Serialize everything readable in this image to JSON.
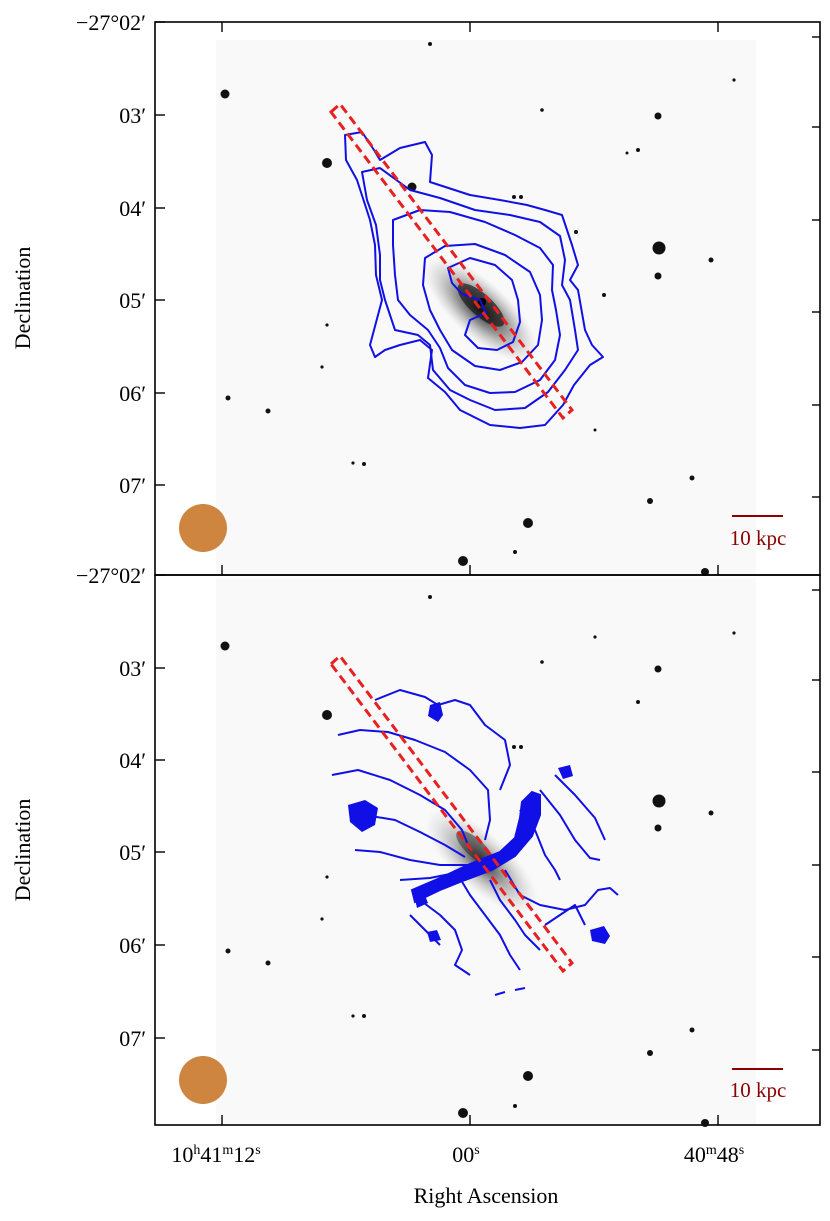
{
  "figure": {
    "xlabel": "Right Ascension",
    "ylabel": "Declination"
  },
  "colors": {
    "contour": "#1010e6",
    "slit": "#e82020",
    "beam": "#cd853f",
    "scalebar": "#8b0000",
    "star": "#111111",
    "galaxy": "#333333"
  },
  "chart_data": [
    {
      "type": "image",
      "panel": "top",
      "contours": "HI column density (blue)",
      "x_ticks": [
        "10h41m12s",
        "00s",
        "40m48s"
      ],
      "x_tick_parts": [
        {
          "a": "10",
          "s1": "h",
          "b": "41",
          "s2": "m",
          "c": "12",
          "s3": "s"
        },
        {
          "a": "00",
          "s1": "s",
          "b": "",
          "s2": "",
          "c": "",
          "s3": ""
        },
        {
          "a": "40",
          "s1": "m",
          "b": "48",
          "s2": "s",
          "c": "",
          "s3": ""
        }
      ],
      "x_tick_labels_shown": false,
      "y_ticks": [
        "−27°02′",
        "03′",
        "04′",
        "05′",
        "06′",
        "07′"
      ],
      "scalebar": "10 kpc",
      "beam": "circle"
    },
    {
      "type": "image",
      "panel": "bottom",
      "contours": "velocity field (blue)",
      "x_ticks": [
        "10h41m12s",
        "00s",
        "40m48s"
      ],
      "x_tick_parts": [
        {
          "a": "10",
          "s1": "h",
          "b": "41",
          "s2": "m",
          "c": "12",
          "s3": "s"
        },
        {
          "a": "00",
          "s1": "s",
          "b": "",
          "s2": "",
          "c": "",
          "s3": ""
        },
        {
          "a": "40",
          "s1": "m",
          "b": "48",
          "s2": "s",
          "c": "",
          "s3": ""
        }
      ],
      "x_tick_labels_shown": true,
      "y_ticks": [
        "−27°02′",
        "03′",
        "04′",
        "05′",
        "06′",
        "07′"
      ],
      "scalebar": "10 kpc",
      "beam": "circle"
    }
  ],
  "labels": {
    "top_y0": "−27°02′",
    "top_y1": "03′",
    "top_y2": "04′",
    "top_y3": "05′",
    "top_y4": "06′",
    "top_y5": "07′",
    "bot_y0": "−27°02′",
    "bot_y1": "03′",
    "bot_y2": "04′",
    "bot_y3": "05′",
    "bot_y4": "06′",
    "bot_y5": "07′",
    "scale_top": "10 kpc",
    "scale_bot": "10 kpc"
  }
}
